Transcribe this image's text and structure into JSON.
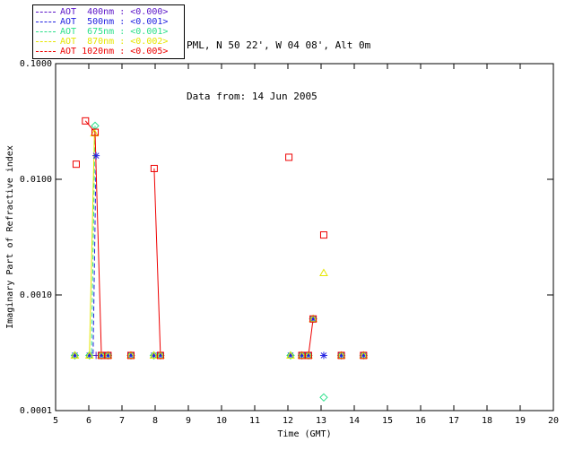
{
  "header": {
    "line1": "PML, N 50 22', W 04 08', Alt 0m",
    "line2": "Data from: 14 Jun 2005"
  },
  "legend": {
    "items": [
      {
        "label": "AOT  400nm : <0.000>",
        "color": "#5A14C8"
      },
      {
        "label": "AOT  500nm : <0.001>",
        "color": "#2222E2"
      },
      {
        "label": "AOT  675nm : <0.001>",
        "color": "#2BE08A"
      },
      {
        "label": "AOT  870nm : <0.002>",
        "color": "#E6E600"
      },
      {
        "label": "AOT 1020nm : <0.005>",
        "color": "#EE0000"
      }
    ]
  },
  "chart_data": {
    "type": "scatter",
    "title": "",
    "xlabel": "Time (GMT)",
    "ylabel": "Imaginary Part of Refractive index",
    "xlim": [
      5,
      20
    ],
    "ylim": [
      0.0001,
      0.1
    ],
    "y_scale": "log",
    "grid": false,
    "x_ticks": [
      5,
      6,
      7,
      8,
      9,
      10,
      11,
      12,
      13,
      14,
      15,
      16,
      17,
      18,
      19,
      20
    ],
    "x_tick_labels": [
      "5",
      "6",
      "7",
      "8",
      "9",
      "10",
      "11",
      "12",
      "13",
      "14",
      "15",
      "16",
      "17",
      "18",
      "19",
      "20"
    ],
    "y_ticks": [
      0.1,
      0.01,
      0.001,
      0.0001
    ],
    "y_tick_labels": [
      "0.1000",
      "0.0100",
      "0.0010",
      "0.0001"
    ],
    "series": [
      {
        "name": "AOT 400nm",
        "color": "#5A14C8",
        "marker": "plus",
        "points": [
          [
            6.22,
            0.0003
          ]
        ]
      },
      {
        "name": "AOT 500nm",
        "color": "#2222E2",
        "marker": "asterisk",
        "points": [
          [
            5.58,
            0.0003
          ],
          [
            6.02,
            0.0003
          ],
          [
            6.22,
            0.016
          ],
          [
            6.38,
            0.0003
          ],
          [
            6.58,
            0.0003
          ],
          [
            7.27,
            0.0003
          ],
          [
            7.96,
            0.0003
          ],
          [
            8.16,
            0.0003
          ],
          [
            12.08,
            0.0003
          ],
          [
            12.42,
            0.0003
          ],
          [
            12.62,
            0.0003
          ],
          [
            12.76,
            0.00062
          ],
          [
            13.08,
            0.0003
          ],
          [
            13.61,
            0.0003
          ],
          [
            14.28,
            0.0003
          ]
        ]
      },
      {
        "name": "AOT 675nm",
        "color": "#2BE08A",
        "marker": "diamond",
        "points": [
          [
            5.58,
            0.0003
          ],
          [
            6.02,
            0.0003
          ],
          [
            6.19,
            0.029
          ],
          [
            6.38,
            0.0003
          ],
          [
            6.58,
            0.0003
          ],
          [
            7.27,
            0.0003
          ],
          [
            7.96,
            0.0003
          ],
          [
            8.16,
            0.0003
          ],
          [
            12.08,
            0.0003
          ],
          [
            12.42,
            0.0003
          ],
          [
            12.62,
            0.0003
          ],
          [
            12.76,
            0.00062
          ],
          [
            13.08,
            0.00013
          ],
          [
            13.61,
            0.0003
          ],
          [
            14.28,
            0.0003
          ]
        ]
      },
      {
        "name": "AOT 870nm",
        "color": "#E6E600",
        "marker": "triangle",
        "points": [
          [
            5.58,
            0.0003
          ],
          [
            6.02,
            0.0003
          ],
          [
            6.17,
            0.025
          ],
          [
            6.38,
            0.0003
          ],
          [
            6.58,
            0.0003
          ],
          [
            7.27,
            0.0003
          ],
          [
            7.96,
            0.0003
          ],
          [
            8.16,
            0.0003
          ],
          [
            12.08,
            0.0003
          ],
          [
            12.42,
            0.0003
          ],
          [
            12.62,
            0.0003
          ],
          [
            12.76,
            0.00062
          ],
          [
            13.08,
            0.00155
          ],
          [
            13.61,
            0.0003
          ],
          [
            14.28,
            0.0003
          ]
        ]
      },
      {
        "name": "AOT 1020nm",
        "color": "#EE0000",
        "marker": "square",
        "points": [
          [
            5.62,
            0.0135
          ],
          [
            5.9,
            0.032
          ],
          [
            6.19,
            0.0255
          ],
          [
            6.38,
            0.0003
          ],
          [
            6.58,
            0.0003
          ],
          [
            7.27,
            0.0003
          ],
          [
            7.97,
            0.0124
          ],
          [
            8.16,
            0.0003
          ],
          [
            12.03,
            0.0155
          ],
          [
            12.42,
            0.0003
          ],
          [
            12.62,
            0.0003
          ],
          [
            12.76,
            0.00062
          ],
          [
            13.08,
            0.0033
          ],
          [
            13.61,
            0.0003
          ],
          [
            14.28,
            0.0003
          ]
        ]
      }
    ],
    "lines": [
      {
        "color": "#2BE08A",
        "style": "dashed",
        "points": [
          [
            6.19,
            0.029
          ],
          [
            6.08,
            0.0003
          ]
        ]
      },
      {
        "color": "#E6E600",
        "style": "solid",
        "points": [
          [
            6.17,
            0.025
          ],
          [
            6.02,
            0.0003
          ]
        ]
      },
      {
        "color": "#2222E2",
        "style": "dashed",
        "points": [
          [
            6.22,
            0.016
          ],
          [
            6.13,
            0.0003
          ]
        ]
      },
      {
        "color": "#EE0000",
        "style": "solid",
        "points": [
          [
            5.9,
            0.032
          ],
          [
            6.19,
            0.0255
          ],
          [
            6.38,
            0.0003
          ],
          [
            6.58,
            0.0003
          ]
        ]
      },
      {
        "color": "#EE0000",
        "style": "solid",
        "points": [
          [
            7.97,
            0.0124
          ],
          [
            8.16,
            0.0003
          ]
        ]
      },
      {
        "color": "#EE0000",
        "style": "solid",
        "points": [
          [
            12.42,
            0.0003
          ],
          [
            12.62,
            0.0003
          ],
          [
            12.76,
            0.00062
          ]
        ]
      }
    ]
  }
}
